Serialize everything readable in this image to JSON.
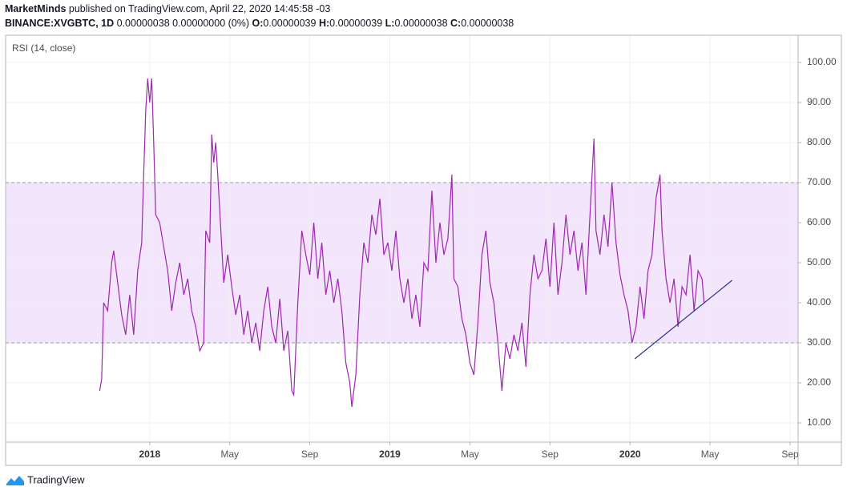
{
  "header": {
    "author": "MarketMinds",
    "published": "published on TradingView.com, April 22, 2020 14:45:58 -03",
    "symbol": "BINANCE:XVGBTC, 1D",
    "change": "0.00000038 0.00000000 (0%)",
    "o_label": "O:",
    "o": "0.00000039",
    "h_label": "H:",
    "h": "0.00000039",
    "l_label": "L:",
    "l": "0.00000038",
    "c_label": "C:",
    "c": "0.00000038"
  },
  "footer": {
    "brand": "TradingView"
  },
  "chart_data": {
    "type": "line",
    "legend": "RSI (14, close)",
    "xlim": [
      -7.2,
      32.4
    ],
    "ylim": [
      5.2,
      106.8
    ],
    "xticks": [
      {
        "value": 0,
        "label": "2018"
      },
      {
        "value": 4,
        "label": "May"
      },
      {
        "value": 8,
        "label": "Sep"
      },
      {
        "value": 12,
        "label": "2019"
      },
      {
        "value": 16,
        "label": "May"
      },
      {
        "value": 20,
        "label": "Sep"
      },
      {
        "value": 24,
        "label": "2020"
      },
      {
        "value": 28,
        "label": "May"
      },
      {
        "value": 32,
        "label": "Sep"
      }
    ],
    "yticks": [
      {
        "value": 10,
        "label": "10.00"
      },
      {
        "value": 20,
        "label": "20.00"
      },
      {
        "value": 30,
        "label": "30.00"
      },
      {
        "value": 40,
        "label": "40.00"
      },
      {
        "value": 50,
        "label": "50.00"
      },
      {
        "value": 60,
        "label": "60.00"
      },
      {
        "value": 70,
        "label": "70.00"
      },
      {
        "value": 80,
        "label": "80.00"
      },
      {
        "value": 90,
        "label": "90.00"
      },
      {
        "value": 100,
        "label": "100.00"
      }
    ],
    "grid": true,
    "band": [
      30,
      70
    ],
    "band_color": "#f3e5fb",
    "color": "#9c27b0",
    "series": [
      {
        "name": "RSI (14, close)",
        "color": "#9c27b0",
        "x": [
          -2.5,
          -2.4,
          -2.3,
          -2.1,
          -1.9,
          -1.8,
          -1.6,
          -1.4,
          -1.2,
          -1.0,
          -0.8,
          -0.6,
          -0.4,
          -0.3,
          -0.2,
          -0.1,
          0.0,
          0.1,
          0.2,
          0.3,
          0.5,
          0.7,
          0.9,
          1.1,
          1.3,
          1.5,
          1.7,
          1.9,
          2.1,
          2.3,
          2.5,
          2.7,
          2.8,
          3.0,
          3.1,
          3.2,
          3.3,
          3.4,
          3.5,
          3.7,
          3.9,
          4.1,
          4.3,
          4.5,
          4.7,
          4.9,
          5.1,
          5.3,
          5.5,
          5.7,
          5.9,
          6.1,
          6.3,
          6.5,
          6.7,
          6.9,
          7.1,
          7.2,
          7.4,
          7.6,
          7.8,
          8.0,
          8.2,
          8.4,
          8.6,
          8.8,
          9.0,
          9.2,
          9.4,
          9.6,
          9.8,
          10.0,
          10.1,
          10.3,
          10.5,
          10.7,
          10.9,
          11.1,
          11.3,
          11.5,
          11.7,
          11.9,
          12.1,
          12.3,
          12.5,
          12.7,
          12.9,
          13.1,
          13.3,
          13.5,
          13.7,
          13.9,
          14.1,
          14.3,
          14.5,
          14.7,
          14.9,
          15.1,
          15.2,
          15.4,
          15.6,
          15.8,
          16.0,
          16.2,
          16.4,
          16.6,
          16.8,
          17.0,
          17.2,
          17.4,
          17.6,
          17.8,
          18.0,
          18.2,
          18.4,
          18.6,
          18.8,
          19.0,
          19.2,
          19.4,
          19.6,
          19.8,
          20.0,
          20.2,
          20.4,
          20.6,
          20.8,
          21.0,
          21.2,
          21.4,
          21.6,
          21.8,
          22.0,
          22.2,
          22.3,
          22.5,
          22.7,
          22.9,
          23.1,
          23.3,
          23.5,
          23.7,
          23.9,
          24.1,
          24.3,
          24.5,
          24.7,
          24.9,
          25.1,
          25.3,
          25.5,
          25.6,
          25.8,
          26.0,
          26.2,
          26.4,
          26.6,
          26.8,
          27.0,
          27.2,
          27.4,
          27.6,
          27.7
        ],
        "values": [
          18,
          21,
          40,
          38,
          50,
          53,
          45,
          37,
          32,
          42,
          32,
          48,
          55,
          72,
          88,
          96,
          90,
          96,
          80,
          62,
          60,
          54,
          48,
          38,
          45,
          50,
          42,
          46,
          38,
          34,
          28,
          30,
          58,
          55,
          82,
          75,
          80,
          72,
          63,
          45,
          52,
          44,
          37,
          42,
          32,
          38,
          30,
          35,
          28,
          38,
          44,
          34,
          30,
          41,
          28,
          33,
          18,
          17,
          40,
          58,
          52,
          47,
          60,
          46,
          55,
          42,
          48,
          40,
          46,
          38,
          25,
          20,
          14,
          22,
          42,
          55,
          50,
          62,
          57,
          66,
          52,
          55,
          48,
          58,
          46,
          40,
          46,
          36,
          42,
          34,
          50,
          48,
          68,
          50,
          60,
          52,
          56,
          72,
          46,
          44,
          36,
          32,
          25,
          22,
          35,
          52,
          58,
          45,
          40,
          30,
          18,
          30,
          26,
          32,
          28,
          35,
          24,
          42,
          52,
          46,
          48,
          56,
          44,
          60,
          42,
          50,
          62,
          52,
          58,
          48,
          55,
          42,
          62,
          81,
          58,
          52,
          62,
          54,
          70,
          55,
          47,
          42,
          38,
          30,
          34,
          44,
          36,
          48,
          52,
          66,
          72,
          58,
          46,
          40,
          46,
          34,
          44,
          42,
          52,
          38,
          48,
          46,
          40
        ]
      }
    ],
    "trendline": {
      "color": "#283593",
      "x": [
        24.24,
        29.1
      ],
      "values": [
        26,
        45.6
      ]
    }
  }
}
